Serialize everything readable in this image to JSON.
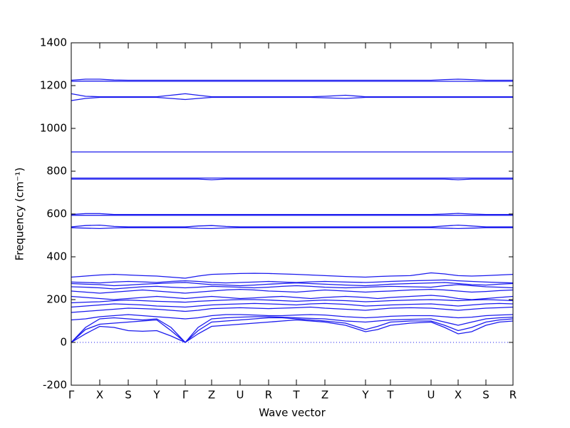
{
  "chart_data": {
    "type": "line",
    "xlabel": "Wave vector",
    "ylabel": "Frequency (cm⁻¹)",
    "line_color": "#1a1aee",
    "xlim": [
      0,
      620
    ],
    "xticks": [
      {
        "value": 0,
        "label": "Γ"
      },
      {
        "value": 40,
        "label": "X"
      },
      {
        "value": 80,
        "label": "S"
      },
      {
        "value": 120,
        "label": "Y"
      },
      {
        "value": 160,
        "label": "Γ"
      },
      {
        "value": 197,
        "label": "Z"
      },
      {
        "value": 237,
        "label": "U"
      },
      {
        "value": 277,
        "label": "R"
      },
      {
        "value": 316,
        "label": "T"
      },
      {
        "value": 356,
        "label": "Z"
      },
      {
        "value": 413,
        "label": "Y"
      },
      {
        "value": 448,
        "label": "T"
      },
      {
        "value": 505,
        "label": "U"
      },
      {
        "value": 543,
        "label": "X"
      },
      {
        "value": 582,
        "label": "S"
      },
      {
        "value": 620,
        "label": "R"
      }
    ],
    "ylim": [
      -200,
      1400
    ],
    "yticks": [
      -200,
      0,
      200,
      400,
      600,
      800,
      1000,
      1200,
      1400
    ],
    "x": [
      0,
      20,
      40,
      60,
      80,
      100,
      120,
      140,
      160,
      178,
      197,
      217,
      237,
      257,
      277,
      296,
      316,
      336,
      356,
      385,
      413,
      430,
      448,
      476,
      505,
      524,
      543,
      562,
      582,
      601,
      620
    ],
    "series": [
      {
        "values": [
          1225,
          1230,
          1230,
          1226,
          1225,
          1225,
          1225,
          1225,
          1225,
          1225,
          1225,
          1225,
          1225,
          1225,
          1225,
          1225,
          1225,
          1225,
          1225,
          1225,
          1225,
          1225,
          1225,
          1225,
          1225,
          1228,
          1230,
          1228,
          1225,
          1225,
          1225
        ]
      },
      {
        "values": [
          1220,
          1221,
          1221,
          1220,
          1220,
          1220,
          1220,
          1220,
          1220,
          1220,
          1220,
          1220,
          1220,
          1220,
          1220,
          1220,
          1220,
          1220,
          1220,
          1220,
          1220,
          1220,
          1220,
          1220,
          1220,
          1220,
          1220,
          1220,
          1220,
          1220,
          1220
        ]
      },
      {
        "values": [
          1162,
          1150,
          1148,
          1148,
          1148,
          1148,
          1148,
          1155,
          1162,
          1155,
          1148,
          1148,
          1148,
          1148,
          1148,
          1148,
          1148,
          1148,
          1150,
          1155,
          1148,
          1148,
          1148,
          1148,
          1148,
          1148,
          1148,
          1148,
          1148,
          1148,
          1148
        ]
      },
      {
        "values": [
          1130,
          1140,
          1145,
          1145,
          1145,
          1145,
          1145,
          1140,
          1135,
          1140,
          1145,
          1145,
          1145,
          1145,
          1145,
          1145,
          1145,
          1145,
          1143,
          1140,
          1145,
          1145,
          1145,
          1145,
          1145,
          1145,
          1145,
          1145,
          1145,
          1145,
          1145
        ]
      },
      {
        "values": [
          890,
          890,
          890,
          890,
          890,
          890,
          890,
          890,
          890,
          890,
          890,
          890,
          890,
          890,
          890,
          890,
          890,
          890,
          890,
          890,
          890,
          890,
          890,
          890,
          890,
          890,
          890,
          890,
          890,
          890,
          890
        ]
      },
      {
        "values": [
          768,
          768,
          768,
          768,
          768,
          768,
          768,
          768,
          768,
          768,
          768,
          768,
          768,
          768,
          768,
          768,
          768,
          768,
          768,
          768,
          768,
          768,
          768,
          768,
          768,
          768,
          768,
          768,
          768,
          768,
          768
        ]
      },
      {
        "values": [
          763,
          763,
          763,
          763,
          763,
          763,
          763,
          763,
          763,
          763,
          760,
          763,
          763,
          763,
          763,
          763,
          763,
          763,
          763,
          763,
          763,
          763,
          763,
          763,
          763,
          763,
          760,
          763,
          763,
          763,
          763
        ]
      },
      {
        "values": [
          598,
          602,
          602,
          598,
          598,
          598,
          598,
          598,
          598,
          598,
          598,
          598,
          598,
          598,
          598,
          598,
          598,
          598,
          598,
          598,
          598,
          598,
          598,
          598,
          598,
          600,
          603,
          600,
          598,
          598,
          598
        ]
      },
      {
        "values": [
          594,
          594,
          594,
          594,
          594,
          594,
          594,
          594,
          594,
          594,
          594,
          594,
          594,
          594,
          594,
          594,
          594,
          594,
          594,
          594,
          594,
          594,
          594,
          594,
          594,
          594,
          594,
          594,
          594,
          594,
          594
        ]
      },
      {
        "values": [
          540,
          546,
          548,
          542,
          540,
          540,
          540,
          540,
          540,
          544,
          546,
          542,
          540,
          540,
          540,
          540,
          540,
          540,
          540,
          540,
          540,
          540,
          540,
          540,
          540,
          544,
          548,
          544,
          540,
          540,
          540
        ]
      },
      {
        "values": [
          536,
          534,
          532,
          535,
          536,
          536,
          536,
          536,
          536,
          533,
          532,
          535,
          536,
          536,
          536,
          536,
          536,
          536,
          536,
          536,
          536,
          536,
          536,
          536,
          536,
          534,
          532,
          534,
          536,
          536,
          536
        ]
      },
      {
        "values": [
          0,
          40,
          75,
          70,
          55,
          52,
          55,
          30,
          0,
          40,
          75,
          80,
          85,
          90,
          95,
          100,
          105,
          100,
          95,
          80,
          50,
          60,
          80,
          90,
          95,
          70,
          40,
          50,
          80,
          95,
          100
        ]
      },
      {
        "values": [
          0,
          60,
          85,
          90,
          95,
          100,
          105,
          55,
          0,
          55,
          95,
          100,
          105,
          110,
          115,
          115,
          110,
          105,
          100,
          90,
          60,
          75,
          95,
          100,
          100,
          80,
          55,
          70,
          95,
          105,
          110
        ]
      },
      {
        "values": [
          0,
          70,
          110,
          115,
          110,
          105,
          110,
          70,
          0,
          70,
          110,
          115,
          118,
          120,
          120,
          118,
          115,
          112,
          110,
          100,
          95,
          100,
          105,
          108,
          110,
          95,
          80,
          95,
          110,
          115,
          118
        ]
      },
      {
        "values": [
          105,
          110,
          120,
          125,
          130,
          125,
          120,
          115,
          110,
          115,
          125,
          130,
          130,
          128,
          125,
          125,
          128,
          130,
          128,
          120,
          115,
          118,
          122,
          125,
          125,
          120,
          115,
          118,
          125,
          128,
          130
        ]
      },
      {
        "values": [
          140,
          145,
          150,
          155,
          160,
          158,
          155,
          150,
          145,
          150,
          158,
          160,
          162,
          160,
          158,
          160,
          162,
          165,
          160,
          155,
          150,
          155,
          160,
          162,
          160,
          155,
          150,
          155,
          160,
          162,
          165
        ]
      },
      {
        "values": [
          165,
          170,
          175,
          180,
          178,
          175,
          170,
          168,
          165,
          170,
          175,
          178,
          180,
          182,
          180,
          178,
          175,
          180,
          182,
          178,
          170,
          172,
          175,
          178,
          180,
          175,
          170,
          175,
          180,
          182,
          180
        ]
      },
      {
        "values": [
          185,
          188,
          190,
          195,
          198,
          195,
          192,
          190,
          188,
          192,
          195,
          198,
          200,
          200,
          198,
          195,
          192,
          195,
          198,
          195,
          190,
          192,
          195,
          198,
          200,
          198,
          195,
          198,
          200,
          198,
          195
        ]
      },
      {
        "values": [
          215,
          210,
          205,
          200,
          205,
          210,
          215,
          210,
          205,
          210,
          215,
          210,
          205,
          208,
          212,
          215,
          210,
          205,
          210,
          215,
          210,
          205,
          210,
          215,
          220,
          215,
          205,
          200,
          205,
          210,
          215
        ]
      },
      {
        "values": [
          240,
          235,
          230,
          235,
          240,
          245,
          240,
          235,
          230,
          235,
          240,
          245,
          248,
          245,
          240,
          238,
          235,
          240,
          245,
          240,
          235,
          238,
          240,
          245,
          248,
          245,
          240,
          235,
          238,
          242,
          245
        ]
      },
      {
        "values": [
          260,
          258,
          255,
          250,
          255,
          260,
          262,
          258,
          255,
          258,
          262,
          260,
          258,
          255,
          258,
          262,
          265,
          262,
          258,
          255,
          258,
          260,
          262,
          260,
          258,
          265,
          270,
          265,
          260,
          258,
          255
        ]
      },
      {
        "values": [
          275,
          272,
          270,
          265,
          268,
          272,
          275,
          278,
          280,
          275,
          270,
          268,
          265,
          268,
          272,
          275,
          278,
          275,
          272,
          268,
          265,
          268,
          272,
          275,
          278,
          280,
          275,
          270,
          268,
          272,
          275
        ]
      },
      {
        "values": [
          282,
          280,
          278,
          282,
          285,
          283,
          280,
          285,
          288,
          285,
          280,
          278,
          280,
          282,
          285,
          282,
          280,
          283,
          285,
          282,
          280,
          282,
          285,
          288,
          290,
          292,
          288,
          285,
          282,
          280,
          278
        ]
      },
      {
        "values": [
          305,
          310,
          315,
          318,
          315,
          312,
          310,
          305,
          300,
          310,
          318,
          320,
          322,
          323,
          322,
          320,
          318,
          315,
          312,
          308,
          305,
          308,
          310,
          312,
          325,
          320,
          312,
          310,
          312,
          315,
          318
        ]
      }
    ]
  }
}
